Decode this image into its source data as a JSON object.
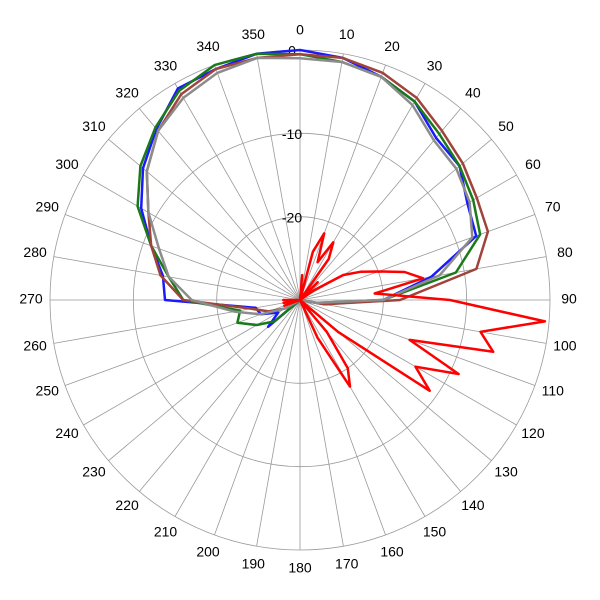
{
  "chart_data": {
    "type": "polar",
    "rlim": [
      -30,
      0
    ],
    "rticks": [
      -20,
      -10,
      0
    ],
    "thetaticks": [
      0,
      10,
      20,
      30,
      40,
      50,
      60,
      70,
      80,
      90,
      100,
      110,
      120,
      130,
      140,
      150,
      160,
      170,
      180,
      190,
      200,
      210,
      220,
      230,
      240,
      250,
      260,
      270,
      280,
      290,
      300,
      310,
      320,
      330,
      340,
      350
    ],
    "x": [
      0,
      10,
      20,
      30,
      40,
      50,
      60,
      70,
      80,
      90,
      100,
      110,
      120,
      130,
      140,
      150,
      160,
      170,
      180,
      190,
      200,
      210,
      220,
      230,
      240,
      250,
      260,
      270,
      280,
      290,
      300,
      310,
      320,
      330,
      340,
      350
    ],
    "series": [
      {
        "color": "#1a1aff",
        "values": [
          0,
          -0.5,
          -1.5,
          -2.5,
          -4.6,
          -5,
          -6.8,
          -7.5,
          -14,
          -20,
          -27,
          -30,
          -30,
          -30,
          -30,
          -30,
          -30,
          -30,
          -30,
          -30,
          -30,
          -30,
          -30,
          -25,
          -27,
          -25,
          -24.6,
          -13.8,
          -13.3,
          -11,
          -8,
          -5.4,
          -3.2,
          -0.7,
          -0.5,
          0
        ]
      },
      {
        "color": "#1a7a1a",
        "values": [
          -0.5,
          -1,
          -1.5,
          -2.5,
          -4,
          -5,
          -6,
          -7,
          -11,
          -20,
          -28,
          -30,
          -30,
          -30,
          -30,
          -30,
          -30,
          -30,
          -30,
          -30,
          -30,
          -30,
          -30,
          -26,
          -24,
          -22,
          -22.7,
          -16,
          -14,
          -11,
          -7.5,
          -5,
          -3,
          -1,
          0,
          0
        ]
      },
      {
        "color": "#a0433a",
        "values": [
          -0.5,
          -0.5,
          -1,
          -2,
          -3.5,
          -4.5,
          -5.5,
          -6,
          -8.5,
          -18,
          -27,
          -30,
          -30,
          -30,
          -30,
          -30,
          -30,
          -30,
          -30,
          -30,
          -30,
          -30,
          -30,
          -30,
          -28,
          -26,
          -24,
          -16,
          -13,
          -11,
          -9,
          -6,
          -3.5,
          -1.5,
          -0.5,
          -0.5
        ]
      },
      {
        "color": "#8c8c8c",
        "values": [
          -1,
          -1,
          -1.5,
          -3,
          -5,
          -5.5,
          -6.5,
          -8,
          -13,
          -20,
          -28,
          -30,
          -30,
          -30,
          -30,
          -30,
          -30,
          -30,
          -30,
          -30,
          -30,
          -30,
          -30,
          -30,
          -28,
          -25,
          -22,
          -17,
          -14,
          -12,
          -9,
          -6,
          -3.5,
          -2,
          -1,
          -0.5
        ]
      },
      {
        "color": "#ff0000",
        "x": [
          0,
          5,
          10,
          15,
          20,
          25,
          30,
          35,
          40,
          45,
          50,
          55,
          60,
          65,
          70,
          75,
          80,
          85,
          90,
          95,
          100,
          105,
          110,
          115,
          120,
          125,
          130,
          135,
          140,
          145,
          150,
          155,
          160,
          165,
          170,
          175,
          180,
          185,
          190,
          195,
          200,
          205,
          210,
          215,
          220,
          225,
          230,
          235,
          240,
          245,
          250,
          255,
          260,
          265,
          270,
          275,
          280,
          285,
          290,
          295,
          300,
          305,
          310,
          315,
          320,
          325,
          330,
          335,
          340,
          345,
          350,
          355
        ],
        "values": [
          -30,
          -27,
          -30,
          -24,
          -21.5,
          -25,
          -22,
          -24,
          -30,
          -27,
          -30,
          -28,
          -24,
          -22,
          -20,
          -17,
          -15,
          -21,
          -12,
          -0.5,
          -8,
          -6,
          -16,
          -9,
          -14,
          -11,
          -24,
          -30,
          -25,
          -20,
          -18,
          -25,
          -30,
          -30,
          -30,
          -30,
          -30,
          -30,
          -30,
          -30,
          -30,
          -30,
          -30,
          -30,
          -30,
          -30,
          -30,
          -30,
          -30,
          -30,
          -28,
          -30,
          -28,
          -30,
          -28,
          -30,
          -30,
          -30,
          -30,
          -30,
          -30,
          -30,
          -30,
          -30,
          -30,
          -30,
          -30,
          -30,
          -30,
          -30,
          -30,
          -30
        ]
      }
    ]
  }
}
